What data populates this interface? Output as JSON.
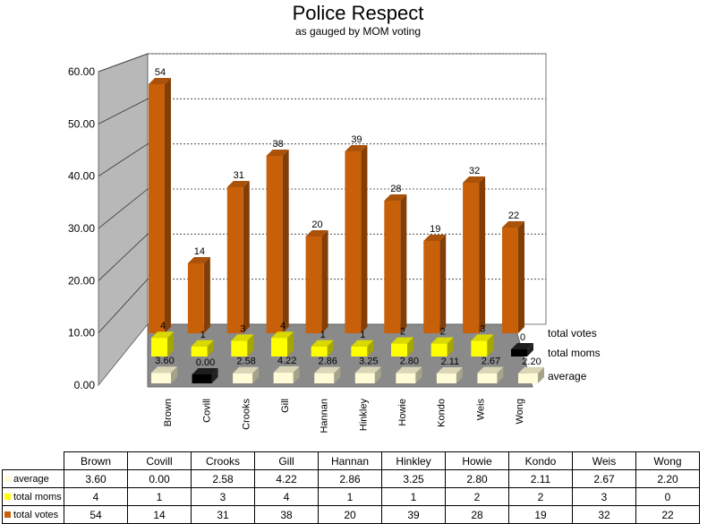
{
  "chart_data": {
    "type": "bar",
    "title": "Police Respect",
    "subtitle": "as gauged by MOM voting",
    "categories": [
      "Brown",
      "Covill",
      "Crooks",
      "Gill",
      "Hannan",
      "Hinkley",
      "Howie",
      "Kondo",
      "Weis",
      "Wong"
    ],
    "series": [
      {
        "name": "average",
        "values": [
          3.6,
          0.0,
          2.58,
          4.22,
          2.86,
          3.25,
          2.8,
          2.11,
          2.67,
          2.2
        ],
        "labels": [
          "3.60",
          "0.00",
          "2.58",
          "4.22",
          "2.86",
          "3.25",
          "2.80",
          "2.11",
          "2.67",
          "2.20"
        ],
        "color": "#fffbd6",
        "zero_color": "#000000"
      },
      {
        "name": "total moms",
        "values": [
          4,
          1,
          3,
          4,
          1,
          1,
          2,
          2,
          3,
          0
        ],
        "labels": [
          "4",
          "1",
          "3",
          "4",
          "1",
          "1",
          "2",
          "2",
          "3",
          "0"
        ],
        "color": "#ffff00",
        "zero_color": "#000000"
      },
      {
        "name": "total votes",
        "values": [
          54,
          14,
          31,
          38,
          20,
          39,
          28,
          19,
          32,
          22
        ],
        "labels": [
          "54",
          "14",
          "31",
          "38",
          "20",
          "39",
          "28",
          "19",
          "32",
          "22"
        ],
        "color": "#c8600a"
      }
    ],
    "ylim": [
      0,
      60
    ],
    "y_ticks": [
      "0.00",
      "10.00",
      "20.00",
      "30.00",
      "40.00",
      "50.00",
      "60.00"
    ],
    "grid": true,
    "projection": "3d-column",
    "legend": "data-table-below"
  }
}
